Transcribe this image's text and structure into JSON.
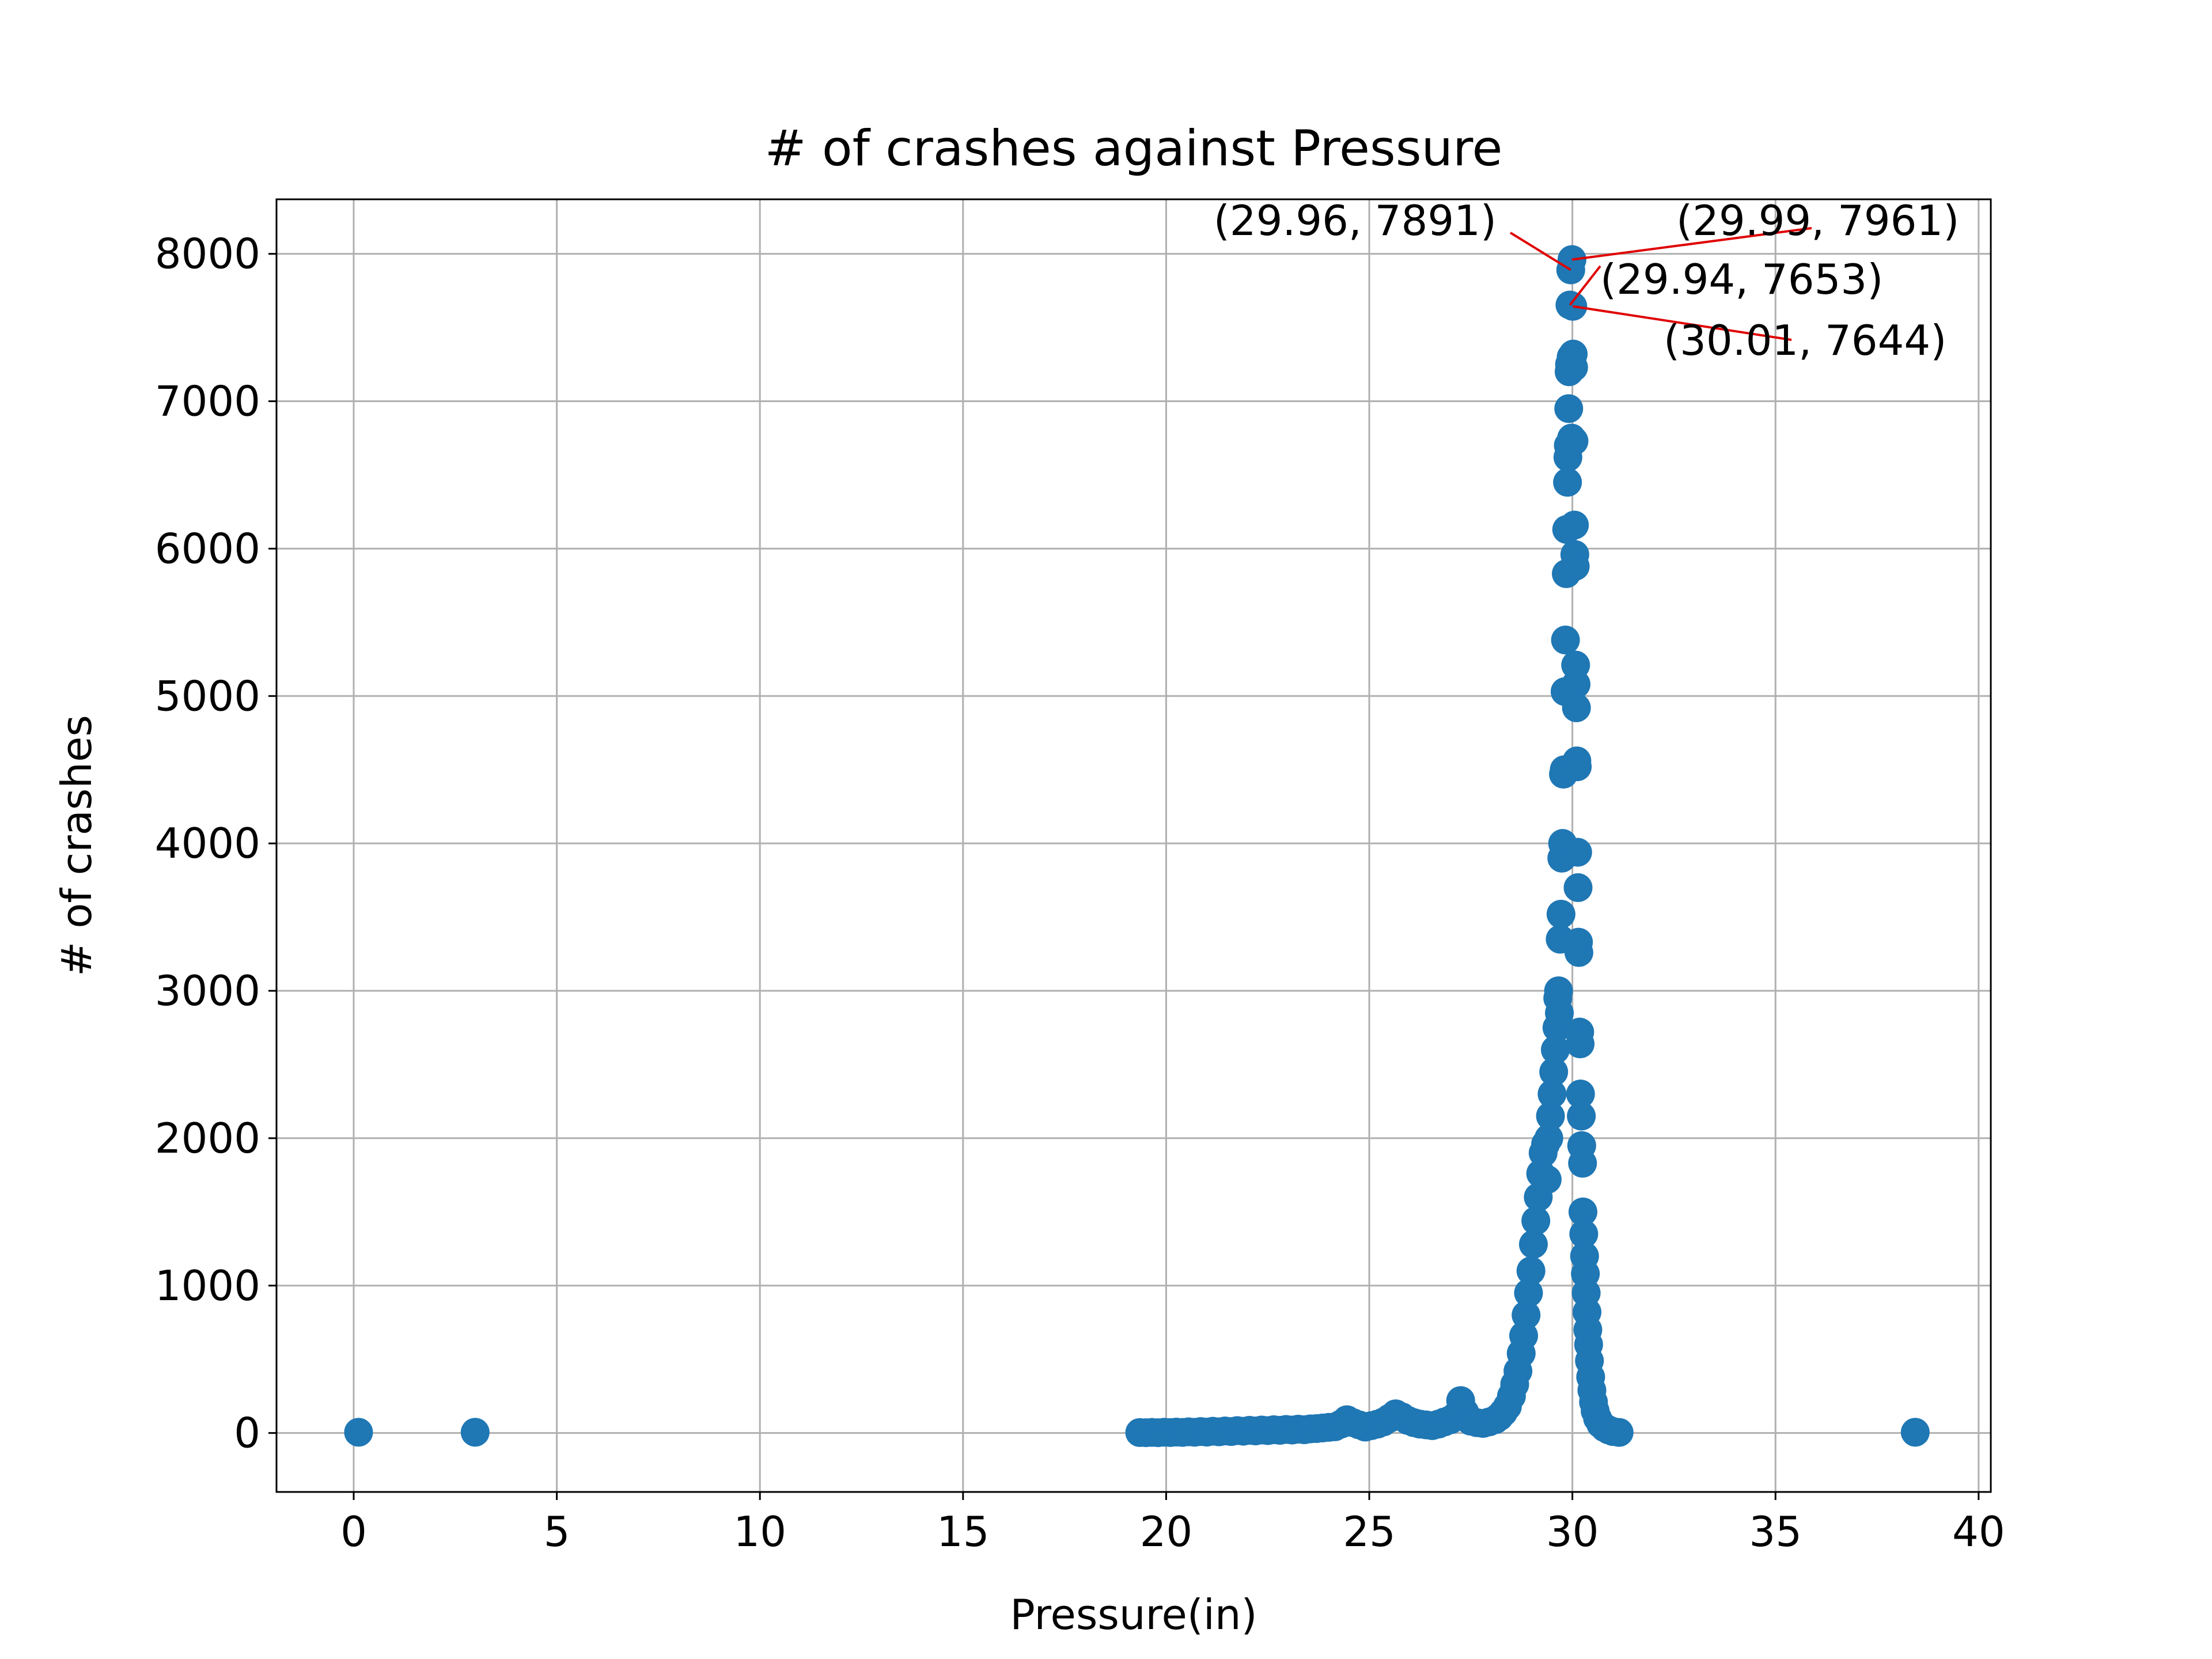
{
  "chart_data": {
    "type": "scatter",
    "title": "# of crashes against Pressure",
    "xlabel": "Pressure(in)",
    "ylabel": "# of crashes",
    "xlim": [
      -1.9,
      40.3
    ],
    "ylim": [
      -400,
      8370
    ],
    "xticks": [
      0,
      5,
      10,
      15,
      20,
      25,
      30,
      35,
      40
    ],
    "yticks": [
      0,
      1000,
      2000,
      3000,
      4000,
      5000,
      6000,
      7000,
      8000
    ],
    "grid": true,
    "marker_color": "#1f77b4",
    "annotation_color": "#e00000",
    "points": [
      [
        0.12,
        5
      ],
      [
        2.99,
        5
      ],
      [
        38.44,
        5
      ],
      [
        19.35,
        3
      ],
      [
        19.5,
        2
      ],
      [
        19.65,
        4
      ],
      [
        19.8,
        2
      ],
      [
        19.95,
        5
      ],
      [
        20.1,
        3
      ],
      [
        20.25,
        6
      ],
      [
        20.4,
        4
      ],
      [
        20.55,
        8
      ],
      [
        20.7,
        5
      ],
      [
        20.85,
        10
      ],
      [
        21.0,
        6
      ],
      [
        21.15,
        12
      ],
      [
        21.3,
        8
      ],
      [
        21.45,
        14
      ],
      [
        21.6,
        10
      ],
      [
        21.75,
        16
      ],
      [
        21.9,
        12
      ],
      [
        22.05,
        18
      ],
      [
        22.2,
        14
      ],
      [
        22.35,
        20
      ],
      [
        22.5,
        16
      ],
      [
        22.65,
        22
      ],
      [
        22.8,
        18
      ],
      [
        22.95,
        24
      ],
      [
        23.1,
        20
      ],
      [
        23.25,
        26
      ],
      [
        23.4,
        22
      ],
      [
        23.55,
        28
      ],
      [
        23.7,
        30
      ],
      [
        23.85,
        34
      ],
      [
        24.0,
        38
      ],
      [
        24.15,
        42
      ],
      [
        24.3,
        60
      ],
      [
        24.45,
        90
      ],
      [
        24.6,
        70
      ],
      [
        24.75,
        55
      ],
      [
        24.9,
        40
      ],
      [
        25.05,
        50
      ],
      [
        25.2,
        60
      ],
      [
        25.35,
        75
      ],
      [
        25.5,
        100
      ],
      [
        25.65,
        130
      ],
      [
        25.8,
        110
      ],
      [
        25.95,
        85
      ],
      [
        26.1,
        70
      ],
      [
        26.25,
        60
      ],
      [
        26.4,
        55
      ],
      [
        26.55,
        50
      ],
      [
        26.7,
        60
      ],
      [
        26.85,
        75
      ],
      [
        27.0,
        90
      ],
      [
        27.15,
        120
      ],
      [
        27.25,
        220
      ],
      [
        27.35,
        140
      ],
      [
        27.5,
        80
      ],
      [
        27.65,
        70
      ],
      [
        27.8,
        65
      ],
      [
        27.95,
        75
      ],
      [
        28.1,
        90
      ],
      [
        28.2,
        110
      ],
      [
        28.3,
        140
      ],
      [
        28.4,
        180
      ],
      [
        28.5,
        250
      ],
      [
        28.58,
        330
      ],
      [
        28.66,
        420
      ],
      [
        28.74,
        540
      ],
      [
        28.8,
        660
      ],
      [
        28.86,
        800
      ],
      [
        28.92,
        950
      ],
      [
        28.98,
        1100
      ],
      [
        29.04,
        1280
      ],
      [
        29.1,
        1440
      ],
      [
        29.16,
        1600
      ],
      [
        29.22,
        1760
      ],
      [
        29.28,
        1900
      ],
      [
        29.34,
        1960
      ],
      [
        29.38,
        1720
      ],
      [
        29.42,
        2000
      ],
      [
        29.46,
        2150
      ],
      [
        29.5,
        2300
      ],
      [
        29.54,
        2450
      ],
      [
        29.58,
        2600
      ],
      [
        29.62,
        2750
      ],
      [
        29.64,
        2950
      ],
      [
        29.66,
        3000
      ],
      [
        29.68,
        2850
      ],
      [
        29.7,
        3350
      ],
      [
        29.72,
        3520
      ],
      [
        29.74,
        3900
      ],
      [
        29.76,
        4000
      ],
      [
        29.78,
        4470
      ],
      [
        29.8,
        4500
      ],
      [
        29.82,
        5030
      ],
      [
        29.83,
        5380
      ],
      [
        29.85,
        5830
      ],
      [
        29.86,
        6130
      ],
      [
        29.88,
        6450
      ],
      [
        29.89,
        6620
      ],
      [
        29.9,
        6700
      ],
      [
        29.91,
        6950
      ],
      [
        29.92,
        7200
      ],
      [
        29.93,
        7250
      ],
      [
        29.94,
        7653
      ],
      [
        29.96,
        7891
      ],
      [
        29.97,
        7300
      ],
      [
        29.98,
        6750
      ],
      [
        29.99,
        7961
      ],
      [
        30.01,
        7644
      ],
      [
        30.02,
        7320
      ],
      [
        30.03,
        7230
      ],
      [
        30.04,
        6730
      ],
      [
        30.05,
        6160
      ],
      [
        30.06,
        5960
      ],
      [
        30.07,
        5880
      ],
      [
        30.08,
        5210
      ],
      [
        30.09,
        5080
      ],
      [
        30.1,
        4920
      ],
      [
        30.11,
        4560
      ],
      [
        30.12,
        4520
      ],
      [
        30.13,
        3940
      ],
      [
        30.14,
        3700
      ],
      [
        30.15,
        3330
      ],
      [
        30.16,
        3260
      ],
      [
        30.18,
        2720
      ],
      [
        30.19,
        2640
      ],
      [
        30.2,
        2300
      ],
      [
        30.22,
        2150
      ],
      [
        30.23,
        1950
      ],
      [
        30.25,
        1830
      ],
      [
        30.26,
        1500
      ],
      [
        30.28,
        1350
      ],
      [
        30.3,
        1200
      ],
      [
        30.32,
        1080
      ],
      [
        30.34,
        950
      ],
      [
        30.36,
        820
      ],
      [
        30.38,
        700
      ],
      [
        30.4,
        600
      ],
      [
        30.42,
        490
      ],
      [
        30.45,
        380
      ],
      [
        30.48,
        290
      ],
      [
        30.52,
        210
      ],
      [
        30.56,
        150
      ],
      [
        30.62,
        100
      ],
      [
        30.7,
        60
      ],
      [
        30.8,
        35
      ],
      [
        30.9,
        20
      ],
      [
        31.0,
        10
      ],
      [
        31.15,
        4
      ]
    ],
    "annotations": [
      {
        "text": "(29.96, 7891)",
        "x": 29.96,
        "y": 7891
      },
      {
        "text": "(29.99, 7961)",
        "x": 29.99,
        "y": 7961
      },
      {
        "text": "(29.94, 7653)",
        "x": 29.94,
        "y": 7653
      },
      {
        "text": "(30.01, 7644)",
        "x": 30.01,
        "y": 7644
      }
    ]
  }
}
